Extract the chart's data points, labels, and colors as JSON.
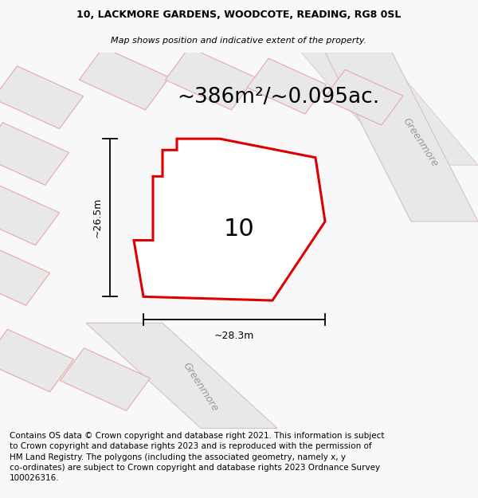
{
  "title_line1": "10, LACKMORE GARDENS, WOODCOTE, READING, RG8 0SL",
  "title_line2": "Map shows position and indicative extent of the property.",
  "area_text": "~386m²/~0.095ac.",
  "width_label": "~28.3m",
  "height_label": "~26.5m",
  "property_number": "10",
  "road_label_right": "Greenmore",
  "road_label_bottom": "Greenmore",
  "footer_text": "Contains OS data © Crown copyright and database right 2021. This information is subject\nto Crown copyright and database rights 2023 and is reproduced with the permission of\nHM Land Registry. The polygons (including the associated geometry, namely x, y\nco-ordinates) are subject to Crown copyright and database rights 2023 Ordnance Survey\n100026316.",
  "bg_color": "#f8f8f8",
  "map_bg": "#ffffff",
  "plot_edge_color": "#dd0000",
  "plot_fill": "#ffffff",
  "road_fill": "#e8e8e8",
  "road_edge": "#d8c0c0",
  "neighbor_edge": "#e8a8a8",
  "neighbor_fill": "#e8e8e8",
  "title_fontsize": 9,
  "subtitle_fontsize": 8,
  "area_fontsize": 19,
  "dim_fontsize": 9,
  "number_fontsize": 22,
  "footer_fontsize": 7.5,
  "road_label_fontsize": 9
}
